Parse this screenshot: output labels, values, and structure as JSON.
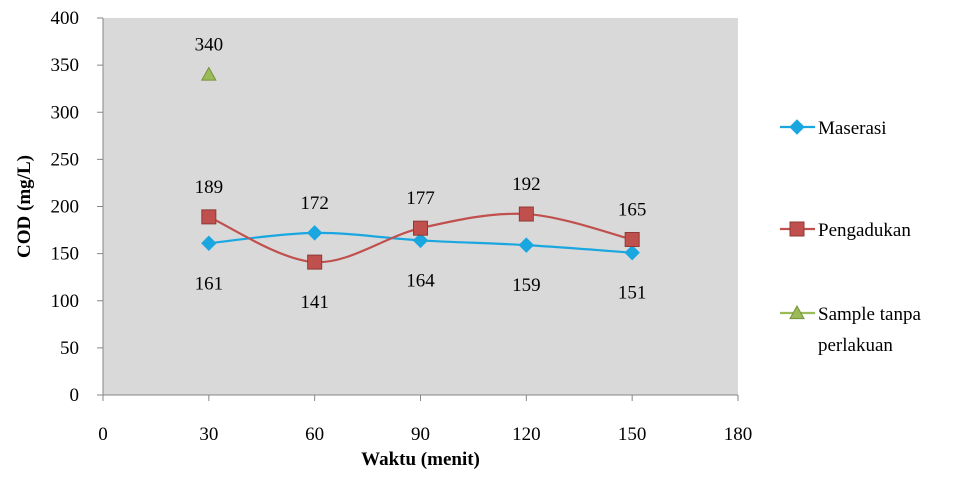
{
  "chart_data": {
    "type": "scatter",
    "title": "",
    "xlabel": "Waktu (menit)",
    "ylabel": "COD (mg/L)",
    "xlim": [
      0,
      180
    ],
    "ylim": [
      0,
      400
    ],
    "x_ticks": [
      0,
      30,
      60,
      90,
      120,
      150,
      180
    ],
    "y_ticks": [
      0,
      50,
      100,
      150,
      200,
      250,
      300,
      350,
      400
    ],
    "grid": false,
    "plot_background": "#d9d9d9",
    "legend_position": "right",
    "series": [
      {
        "name": "Maserasi",
        "marker": "diamond",
        "line": "smooth",
        "color": "#1aa7e0",
        "x": [
          30,
          60,
          90,
          120,
          150
        ],
        "y": [
          161,
          172,
          164,
          159,
          151
        ],
        "labels": [
          "161",
          "172",
          "164",
          "159",
          "151"
        ],
        "label_positions": [
          "below",
          "above",
          "below",
          "below",
          "below"
        ]
      },
      {
        "name": "Pengadukan",
        "marker": "square",
        "line": "smooth",
        "color": "#c0504d",
        "x": [
          30,
          60,
          90,
          120,
          150
        ],
        "y": [
          189,
          141,
          177,
          192,
          165
        ],
        "labels": [
          "189",
          "141",
          "177",
          "192",
          "165"
        ],
        "label_positions": [
          "above",
          "below",
          "above",
          "above",
          "above"
        ]
      },
      {
        "name": "Sample tanpa perlakuan",
        "name_lines": [
          "Sample tanpa",
          "perlakuan"
        ],
        "marker": "triangle",
        "line": "none",
        "color": "#9bbb59",
        "x": [
          30
        ],
        "y": [
          340
        ],
        "labels": [
          "340"
        ],
        "label_positions": [
          "above"
        ]
      }
    ]
  }
}
